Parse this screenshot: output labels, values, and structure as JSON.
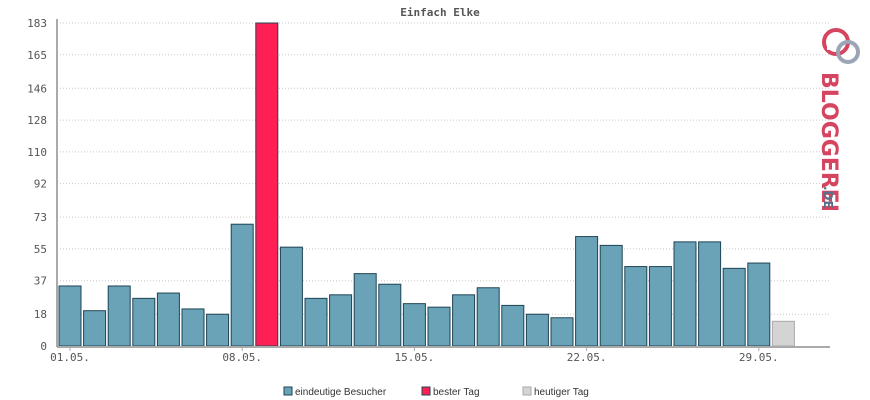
{
  "chart_data": {
    "type": "bar",
    "title": "Einfach Elke",
    "ylim": [
      0,
      183
    ],
    "y_ticks": [
      0,
      18,
      37,
      55,
      73,
      92,
      110,
      128,
      146,
      165,
      183
    ],
    "x_tick_labels": [
      {
        "index": 0,
        "label": "01.05."
      },
      {
        "index": 7,
        "label": "08.05."
      },
      {
        "index": 14,
        "label": "15.05."
      },
      {
        "index": 21,
        "label": "22.05."
      },
      {
        "index": 28,
        "label": "29.05."
      }
    ],
    "values": [
      34,
      20,
      34,
      27,
      30,
      21,
      18,
      69,
      183,
      56,
      27,
      29,
      41,
      35,
      24,
      22,
      29,
      33,
      23,
      18,
      16,
      62,
      57,
      45,
      45,
      59,
      59,
      44,
      47,
      14
    ],
    "bar_types": [
      "v",
      "v",
      "v",
      "v",
      "v",
      "v",
      "v",
      "v",
      "best",
      "v",
      "v",
      "v",
      "v",
      "v",
      "v",
      "v",
      "v",
      "v",
      "v",
      "v",
      "v",
      "v",
      "v",
      "v",
      "v",
      "v",
      "v",
      "v",
      "v",
      "today"
    ],
    "colors": {
      "visitors": "#6aa2b8",
      "best": "#ff1f55",
      "today": "#d4d4d4",
      "bar_stroke": "#1f4454",
      "today_stroke": "#aaaaaa"
    },
    "legend": [
      {
        "key": "visitors",
        "label": "eindeutige Besucher"
      },
      {
        "key": "best",
        "label": "bester Tag"
      },
      {
        "key": "today",
        "label": "heutiger Tag"
      }
    ],
    "grid": true,
    "legend_placement": "bottom-center"
  },
  "brand": {
    "main": "BLOGGEREI",
    "suffix": ".DE",
    "icon": "bloggerei-logo-icon",
    "colors": {
      "red": "#d64560",
      "blue": "#5a6f8a",
      "grey": "#9aa5b5"
    }
  }
}
